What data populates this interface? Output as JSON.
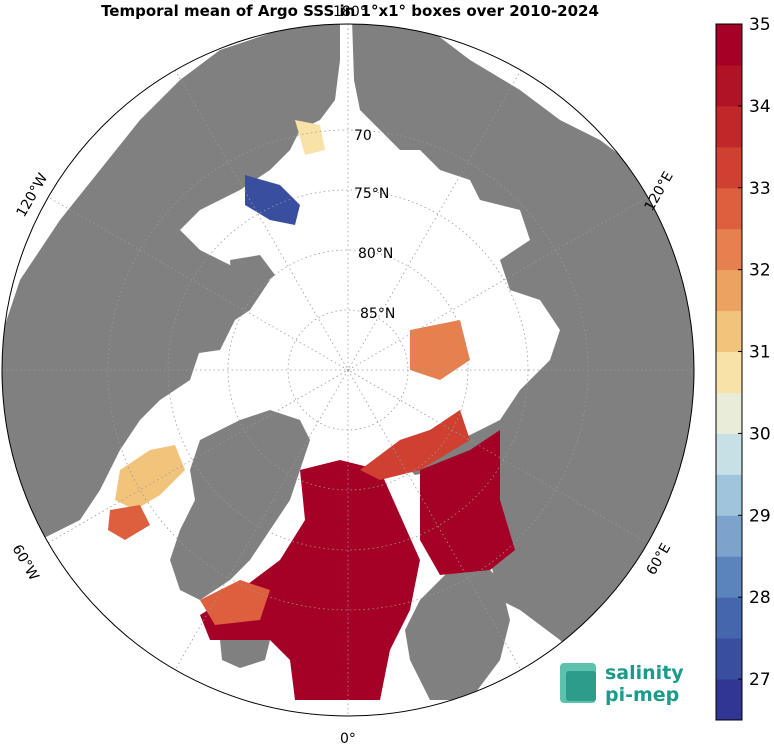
{
  "title": "Temporal mean of Argo SSS in 1°x1° boxes over 2010-2024",
  "map": {
    "projection": "north-polar-stereographic",
    "lat_labels": [
      "70",
      "75°N",
      "80°N",
      "85°N"
    ],
    "lon_labels": {
      "top": "180°",
      "left": "120°W",
      "right": "120°E",
      "lower_left": "60°W",
      "lower_right": "60°E",
      "bottom": "0°"
    },
    "colors": {
      "land": "#808080",
      "ocean": "#ffffff",
      "grid": "#999999"
    }
  },
  "colorbar": {
    "min": 26.5,
    "max": 35,
    "ticks": [
      "35",
      "34",
      "33",
      "32",
      "31",
      "30",
      "29",
      "28",
      "27"
    ],
    "colors": [
      "#313695",
      "#3a4ea0",
      "#4466ad",
      "#5b83bc",
      "#7ba3cc",
      "#a0c4dc",
      "#c6e0e6",
      "#e8ecd8",
      "#f8e2a8",
      "#f2c37a",
      "#eca362",
      "#e6804e",
      "#dd5f3e",
      "#cf4030",
      "#c02728",
      "#b01226",
      "#a50026"
    ]
  },
  "logo": {
    "line1": "salinity",
    "line2": "pi-mep"
  }
}
